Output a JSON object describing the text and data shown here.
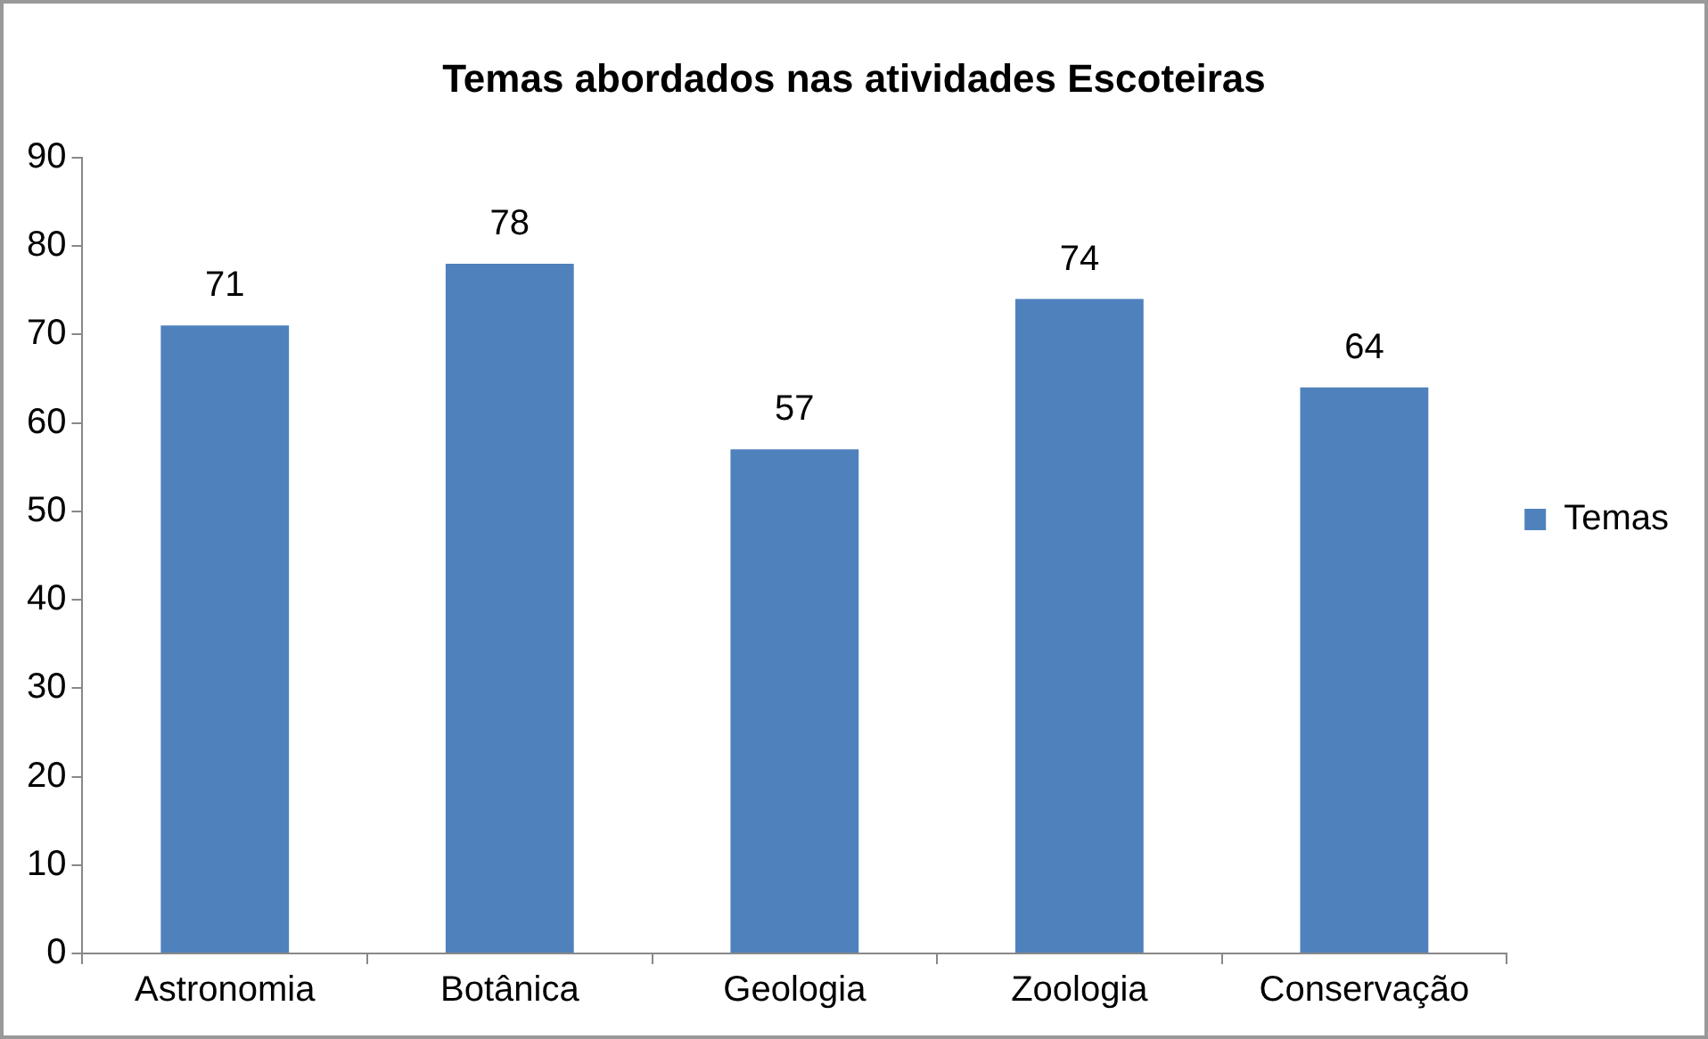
{
  "chart_data": {
    "type": "bar",
    "title": "Temas abordados nas atividades Escoteiras",
    "categories": [
      "Astronomia",
      "Botânica",
      "Geologia",
      "Zoologia",
      "Conservação"
    ],
    "series": [
      {
        "name": "Temas",
        "color": "#4f81bd",
        "values": [
          71,
          78,
          57,
          74,
          64
        ]
      }
    ],
    "ylim": [
      0,
      90
    ],
    "yticks": [
      0,
      10,
      20,
      30,
      40,
      50,
      60,
      70,
      80,
      90
    ],
    "grid": false,
    "legend": "right",
    "data_labels": true
  }
}
